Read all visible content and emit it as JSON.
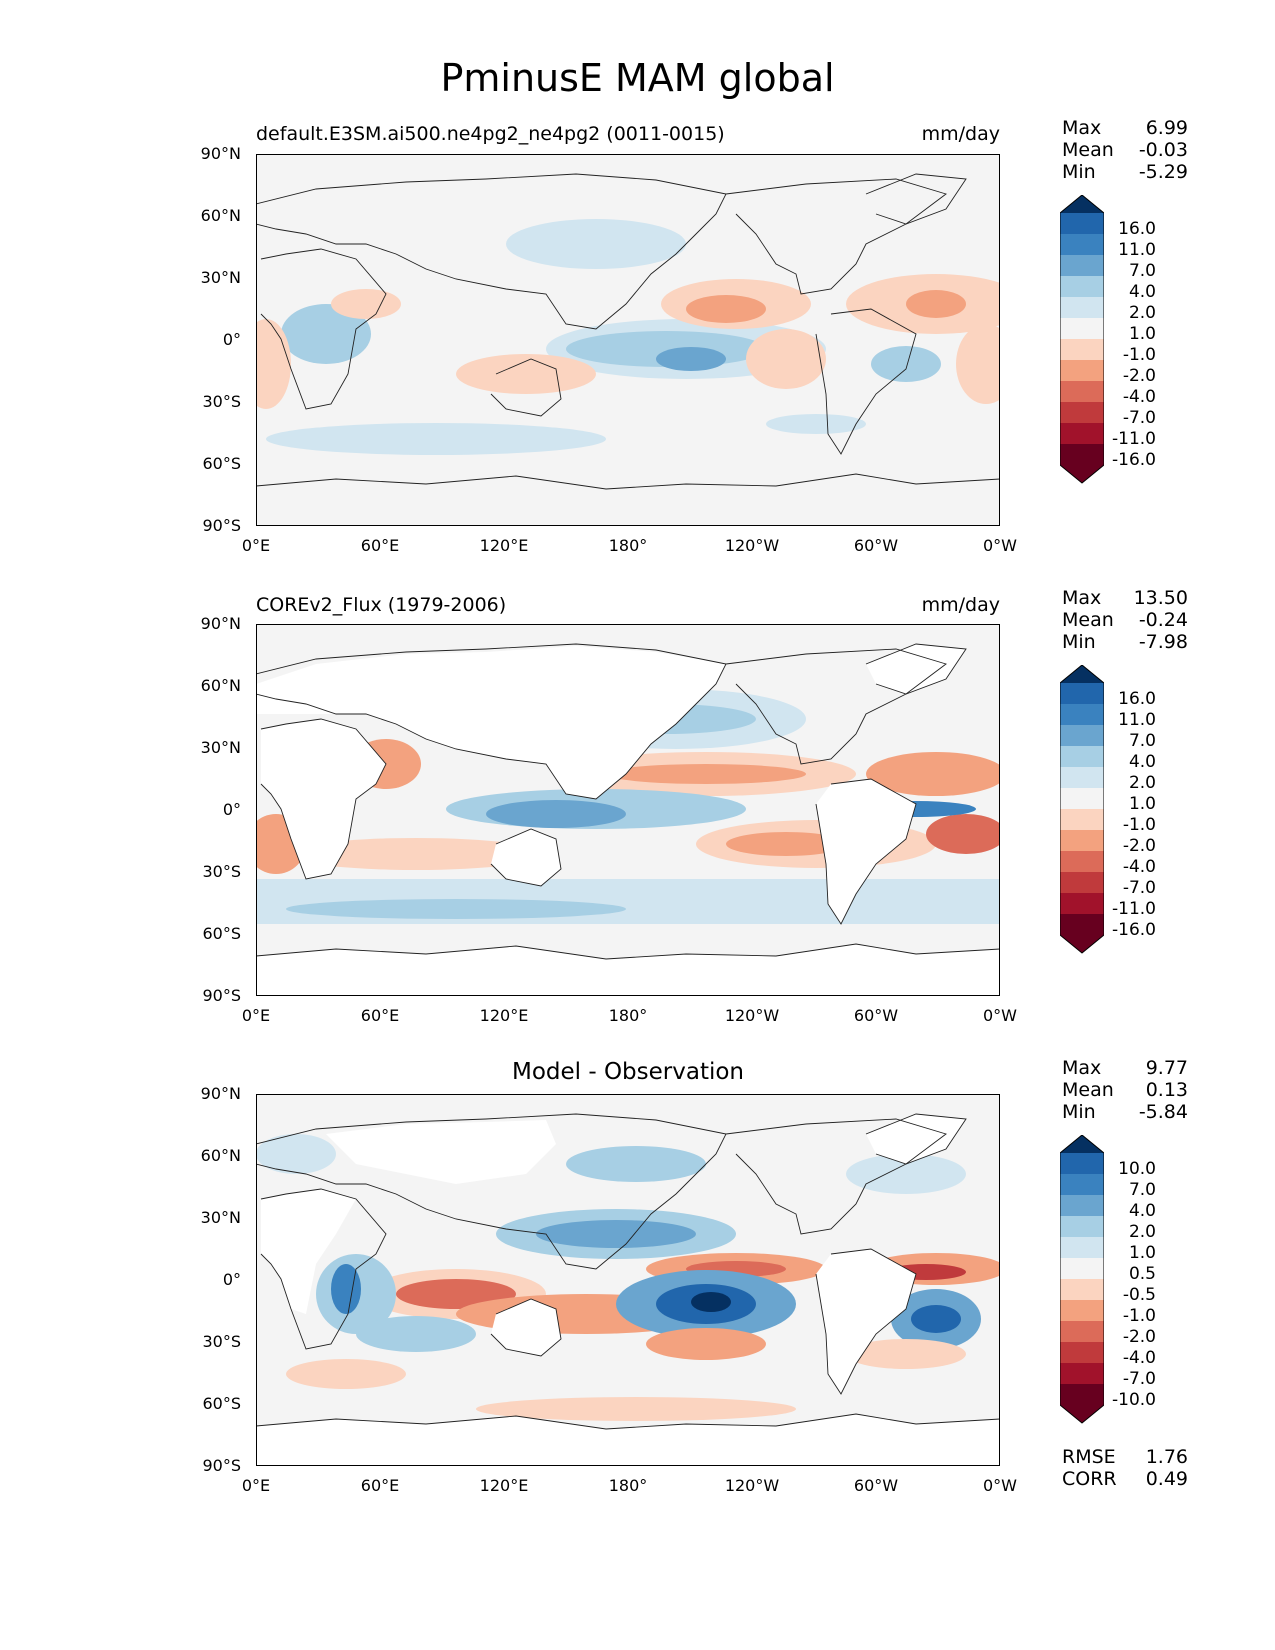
{
  "title": "PminusE MAM global",
  "axes": {
    "lat_labels": [
      "90°N",
      "60°N",
      "30°N",
      "0°",
      "30°S",
      "60°S",
      "90°S"
    ],
    "lon_labels": [
      "0°E",
      "60°E",
      "120°E",
      "180°",
      "120°W",
      "60°W",
      "0°W"
    ]
  },
  "panels": [
    {
      "title_left": "default.E3SM.ai500.ne4pg2_ne4pg2 (0011-0015)",
      "units": "mm/day",
      "stats": {
        "max_label": "Max",
        "max": "6.99",
        "mean_label": "Mean",
        "mean": "-0.03",
        "min_label": "Min",
        "min": "-5.29"
      },
      "colorbar_labels": [
        "16.0",
        "11.0",
        "7.0",
        "4.0",
        "2.0",
        "1.0",
        "-1.0",
        "-2.0",
        "-4.0",
        "-7.0",
        "-11.0",
        "-16.0"
      ]
    },
    {
      "title_left": "COREv2_Flux (1979-2006)",
      "units": "mm/day",
      "stats": {
        "max_label": "Max",
        "max": "13.50",
        "mean_label": "Mean",
        "mean": "-0.24",
        "min_label": "Min",
        "min": "-7.98"
      },
      "colorbar_labels": [
        "16.0",
        "11.0",
        "7.0",
        "4.0",
        "2.0",
        "1.0",
        "-1.0",
        "-2.0",
        "-4.0",
        "-7.0",
        "-11.0",
        "-16.0"
      ]
    },
    {
      "title_center": "Model - Observation",
      "stats": {
        "max_label": "Max",
        "max": "9.77",
        "mean_label": "Mean",
        "mean": "0.13",
        "min_label": "Min",
        "min": "-5.84"
      },
      "colorbar_labels": [
        "10.0",
        "7.0",
        "4.0",
        "2.0",
        "1.0",
        "0.5",
        "-0.5",
        "-1.0",
        "-2.0",
        "-4.0",
        "-7.0",
        "-10.0"
      ],
      "metrics": {
        "rmse_label": "RMSE",
        "rmse": "1.76",
        "corr_label": "CORR",
        "corr": "0.49"
      }
    }
  ],
  "colors": {
    "cbar": [
      "#053061",
      "#2166ac",
      "#3a82bf",
      "#6aa5cf",
      "#a7cfe4",
      "#d1e5f0",
      "#f4f4f4",
      "#fbd4c0",
      "#f3a27f",
      "#dc6b59",
      "#c03a3c",
      "#a1122b",
      "#67001f"
    ]
  }
}
